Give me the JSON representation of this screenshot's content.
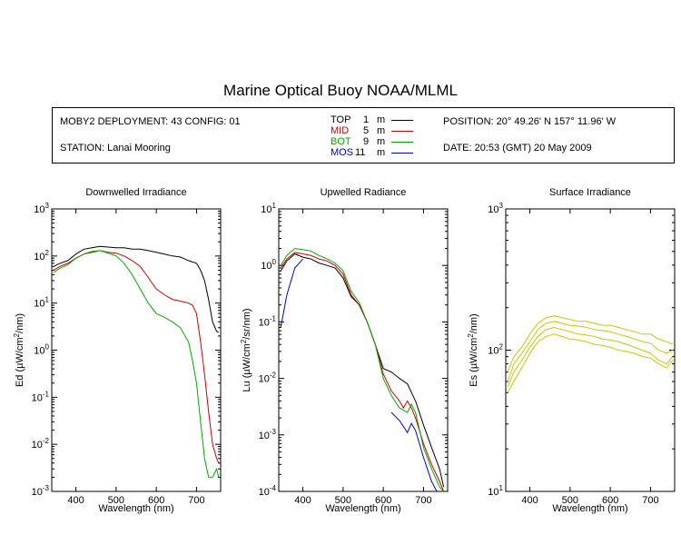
{
  "page": {
    "title": "Marine Optical Buoy NOAA/MLML"
  },
  "info": {
    "deployment": "MOBY2 DEPLOYMENT: 43 CONFIG: 01",
    "station": "STATION: Lanai Mooring",
    "position": "POSITION: 20° 49.26' N   157° 11.96' W",
    "date": "DATE: 20:53 (GMT) 20 May 2009",
    "legend": [
      {
        "label": "TOP",
        "depth": "1",
        "unit": "m",
        "color": "#000000"
      },
      {
        "label": "MID",
        "depth": "5",
        "unit": "m",
        "color": "#cc0000"
      },
      {
        "label": "BOT",
        "depth": "9",
        "unit": "m",
        "color": "#00aa00"
      },
      {
        "label": "MOS",
        "depth": "11",
        "unit": "m",
        "color": "#0000cc"
      }
    ]
  },
  "chart_data": [
    {
      "type": "line",
      "title": "Downwelled Irradiance",
      "xlabel": "Wavelength (nm)",
      "ylabel": "Ed  (µW/cm²/nm)",
      "xlim": [
        340,
        760
      ],
      "ylim": [
        0.001,
        1000
      ],
      "yscale": "log",
      "xticks": [
        400,
        500,
        600,
        700
      ],
      "ytick_labels": [
        "10^-3",
        "10^-2",
        "10^-1",
        "10^0",
        "10^1",
        "10^2",
        "10^3"
      ],
      "series": [
        {
          "name": "TOP",
          "color": "#000000",
          "x": [
            345,
            360,
            380,
            400,
            420,
            440,
            460,
            480,
            500,
            520,
            540,
            560,
            580,
            600,
            620,
            640,
            660,
            680,
            700,
            710,
            720,
            730,
            740,
            750,
            755
          ],
          "y": [
            60,
            70,
            80,
            110,
            140,
            150,
            160,
            155,
            150,
            150,
            140,
            140,
            130,
            120,
            110,
            100,
            95,
            80,
            70,
            50,
            30,
            12,
            4,
            2.5,
            2.4
          ]
        },
        {
          "name": "MID",
          "color": "#cc0000",
          "x": [
            345,
            360,
            380,
            400,
            420,
            440,
            460,
            480,
            500,
            520,
            540,
            560,
            580,
            600,
            620,
            640,
            660,
            680,
            690,
            700,
            710,
            720,
            730,
            740,
            750,
            755
          ],
          "y": [
            50,
            60,
            70,
            90,
            110,
            120,
            130,
            120,
            115,
            100,
            80,
            60,
            35,
            20,
            15,
            12,
            11,
            10,
            9,
            6,
            1.5,
            0.3,
            0.05,
            0.01,
            0.005,
            0.004
          ]
        },
        {
          "name": "BOT",
          "color": "#00aa00",
          "x": [
            345,
            360,
            380,
            400,
            420,
            440,
            460,
            480,
            500,
            520,
            540,
            560,
            580,
            600,
            620,
            640,
            660,
            680,
            690,
            700,
            710,
            720,
            730,
            740,
            750,
            755
          ],
          "y": [
            45,
            55,
            65,
            90,
            110,
            125,
            130,
            115,
            100,
            70,
            40,
            20,
            10,
            6,
            5,
            4,
            3,
            1.5,
            0.6,
            0.2,
            0.03,
            0.005,
            0.002,
            0.002,
            0.003,
            0.002
          ]
        }
      ]
    },
    {
      "type": "line",
      "title": "Upwelled Radiance",
      "xlabel": "Wavelength (nm)",
      "ylabel": "Lu  (µW/cm²/sr/nm)",
      "xlim": [
        340,
        760
      ],
      "ylim": [
        0.0001,
        10
      ],
      "yscale": "log",
      "xticks": [
        400,
        500,
        600,
        700
      ],
      "ytick_labels": [
        "10^-4",
        "10^-3",
        "10^-2",
        "10^-1",
        "10^0",
        "10^1"
      ],
      "series": [
        {
          "name": "TOP",
          "color": "#000000",
          "x": [
            345,
            360,
            380,
            400,
            420,
            440,
            460,
            480,
            500,
            520,
            540,
            560,
            580,
            600,
            620,
            640,
            660,
            680,
            700,
            720,
            740,
            750
          ],
          "y": [
            0.8,
            1.2,
            1.6,
            1.4,
            1.3,
            1.1,
            1.0,
            0.9,
            0.6,
            0.28,
            0.2,
            0.1,
            0.04,
            0.015,
            0.013,
            0.01,
            0.008,
            0.004,
            0.0015,
            0.0006,
            0.00025,
            0.00012
          ]
        },
        {
          "name": "MID",
          "color": "#cc0000",
          "x": [
            345,
            360,
            380,
            400,
            420,
            440,
            460,
            480,
            500,
            520,
            540,
            560,
            580,
            600,
            620,
            640,
            650,
            660,
            670,
            680,
            700,
            720,
            740,
            750
          ],
          "y": [
            0.9,
            1.3,
            1.7,
            1.6,
            1.5,
            1.3,
            1.2,
            1.0,
            0.7,
            0.3,
            0.2,
            0.1,
            0.04,
            0.012,
            0.006,
            0.004,
            0.003,
            0.004,
            0.003,
            0.002,
            0.0007,
            0.0003,
            0.00015,
            0.0001
          ]
        },
        {
          "name": "BOT",
          "color": "#00aa00",
          "x": [
            345,
            360,
            380,
            400,
            420,
            440,
            460,
            480,
            500,
            520,
            540,
            560,
            580,
            600,
            620,
            640,
            660,
            670,
            680,
            700,
            720,
            740,
            750
          ],
          "y": [
            1.0,
            1.5,
            2.0,
            1.9,
            1.8,
            1.5,
            1.3,
            1.1,
            0.8,
            0.35,
            0.22,
            0.1,
            0.04,
            0.01,
            0.005,
            0.003,
            0.0025,
            0.0035,
            0.0025,
            0.0006,
            0.00025,
            0.00012,
            0.0001
          ]
        },
        {
          "name": "MOS",
          "color": "#0000cc",
          "x": [
            345,
            360,
            380,
            400
          ],
          "y": [
            0.08,
            0.3,
            0.9,
            1.3
          ]
        },
        {
          "name": "MOS",
          "color": "#0000cc",
          "x": [
            620,
            640,
            660,
            670,
            680,
            700,
            720,
            740,
            750
          ],
          "y": [
            0.0025,
            0.0018,
            0.0011,
            0.0016,
            0.0012,
            0.0004,
            0.00015,
            8e-05,
            5e-05
          ]
        }
      ]
    },
    {
      "type": "line",
      "title": "Surface Irradiance",
      "xlabel": "Wavelength (nm)",
      "ylabel": "Es  (µW/cm²/nm)",
      "xlim": [
        340,
        760
      ],
      "ylim": [
        10,
        1000
      ],
      "yscale": "log",
      "xticks": [
        400,
        500,
        600,
        700
      ],
      "ytick_labels": [
        "10^1",
        "10^2",
        "10^3"
      ],
      "series": [
        {
          "name": "",
          "color": "#c8c800",
          "x": [
            345,
            360,
            380,
            400,
            420,
            440,
            460,
            480,
            500,
            520,
            540,
            560,
            580,
            600,
            620,
            640,
            660,
            680,
            700,
            720,
            740,
            755
          ],
          "y": [
            70,
            90,
            105,
            130,
            155,
            170,
            175,
            170,
            165,
            160,
            160,
            155,
            150,
            150,
            145,
            140,
            135,
            130,
            130,
            120,
            115,
            110
          ]
        },
        {
          "name": "",
          "color": "#c8c800",
          "x": [
            345,
            360,
            380,
            400,
            420,
            440,
            460,
            480,
            500,
            520,
            540,
            560,
            580,
            600,
            620,
            640,
            660,
            680,
            700,
            720,
            740,
            755
          ],
          "y": [
            60,
            80,
            95,
            115,
            140,
            155,
            160,
            155,
            150,
            148,
            145,
            140,
            138,
            135,
            130,
            125,
            120,
            115,
            112,
            100,
            95,
            100
          ]
        },
        {
          "name": "",
          "color": "#c8c800",
          "x": [
            345,
            360,
            380,
            400,
            420,
            440,
            460,
            480,
            500,
            520,
            540,
            560,
            580,
            600,
            620,
            640,
            660,
            680,
            700,
            720,
            740,
            755
          ],
          "y": [
            55,
            70,
            85,
            105,
            125,
            140,
            145,
            140,
            135,
            130,
            128,
            125,
            120,
            118,
            115,
            110,
            105,
            100,
            95,
            85,
            80,
            90
          ]
        },
        {
          "name": "",
          "color": "#c8c800",
          "x": [
            345,
            360,
            380,
            400,
            420,
            440,
            460,
            480,
            500,
            520,
            540,
            560,
            580,
            600,
            620,
            640,
            660,
            680,
            700,
            720,
            740,
            755
          ],
          "y": [
            50,
            60,
            75,
            95,
            115,
            125,
            130,
            125,
            120,
            118,
            115,
            110,
            108,
            105,
            100,
            98,
            95,
            90,
            88,
            80,
            75,
            85
          ]
        }
      ]
    }
  ]
}
